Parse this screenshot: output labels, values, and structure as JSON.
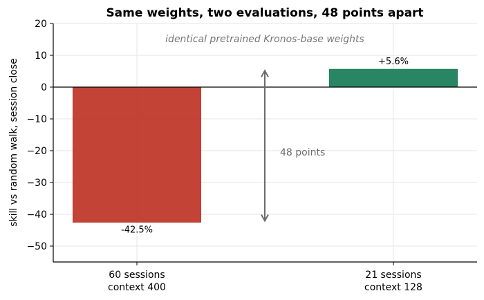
{
  "chart_data": {
    "type": "bar",
    "title": "Same weights, two evaluations, 48 points apart",
    "subtitle": "identical pretrained Kronos-base weights",
    "ylabel": "skill vs random walk, session close",
    "xlabel": "",
    "ylim": [
      -55,
      20
    ],
    "yticks": [
      20,
      10,
      0,
      -10,
      -20,
      -30,
      -40,
      -50
    ],
    "ytick_labels": [
      "20",
      "10",
      "0",
      "−10",
      "−20",
      "−30",
      "−40",
      "−50"
    ],
    "categories": [
      [
        "60 sessions",
        "context 400"
      ],
      [
        "21 sessions",
        "context 128"
      ]
    ],
    "values": [
      -42.5,
      5.6
    ],
    "data_labels": [
      "-42.5%",
      "+5.6%"
    ],
    "colors": [
      "#c0392b",
      "#1e7f5c"
    ],
    "grid": true,
    "annotation": {
      "text": "48 points",
      "from": -42.5,
      "to": 5.6
    }
  }
}
